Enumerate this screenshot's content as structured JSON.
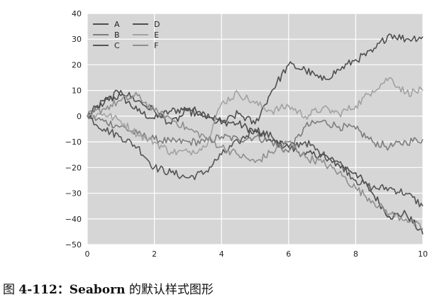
{
  "caption": {
    "prefix": "图 ",
    "number": "4-112：",
    "bold_word": "Seaborn",
    "suffix": " 的默认样式图形"
  },
  "style": {
    "plot_background": "#d6d6d6",
    "grid_color": "#ffffff",
    "series_colors": [
      "#4d4d4d",
      "#7d7d7d",
      "#555555",
      "#4f4f4f",
      "#a2a2a2",
      "#8e8e8e"
    ]
  },
  "chart_data": {
    "type": "line",
    "title": "",
    "xlabel": "",
    "ylabel": "",
    "xlim": [
      0,
      10
    ],
    "ylim": [
      -50,
      40
    ],
    "xticks": [
      0,
      2,
      4,
      6,
      8,
      10
    ],
    "yticks": [
      40,
      30,
      20,
      10,
      0,
      -10,
      -20,
      -30,
      -40,
      -50
    ],
    "xtick_labels": [
      "0",
      "2",
      "4",
      "6",
      "8",
      "10"
    ],
    "ytick_labels": [
      "40",
      "30",
      "20",
      "10",
      "0",
      "−10",
      "−20",
      "−30",
      "−40",
      "−50"
    ],
    "grid": true,
    "legend": {
      "placement": "top-left",
      "columns": 2
    },
    "x": [
      0,
      0.5,
      1,
      1.5,
      2,
      2.5,
      3,
      3.5,
      4,
      4.5,
      5,
      5.5,
      6,
      6.5,
      7,
      7.5,
      8,
      8.5,
      9,
      9.5,
      10
    ],
    "series": [
      {
        "name": "A",
        "values": [
          0,
          6,
          8,
          2,
          -1,
          2,
          3,
          1,
          -2,
          -3,
          -6,
          -10,
          -12,
          -15,
          -15,
          -19,
          -22,
          -30,
          -39,
          -38,
          -46
        ]
      },
      {
        "name": "B",
        "values": [
          0,
          -2,
          -4,
          -7,
          -9,
          -10,
          -10,
          -10,
          -8,
          -9,
          -8,
          -10,
          -14,
          -4,
          -2,
          -4,
          -5,
          -10,
          -12,
          -10,
          -9
        ]
      },
      {
        "name": "C",
        "values": [
          0,
          -5,
          -8,
          -12,
          -20,
          -22,
          -24,
          -22,
          -15,
          -10,
          -5,
          -8,
          -12,
          -10,
          -15,
          -18,
          -25,
          -28,
          -28,
          -30,
          -35
        ]
      },
      {
        "name": "D",
        "values": [
          0,
          5,
          10,
          6,
          2,
          -3,
          2,
          0,
          -3,
          1,
          -3,
          10,
          20,
          18,
          14,
          18,
          22,
          25,
          32,
          30,
          31
        ]
      },
      {
        "name": "E",
        "values": [
          0,
          1,
          -2,
          -7,
          -10,
          -14,
          -14,
          -12,
          5,
          9,
          5,
          2,
          4,
          0,
          3,
          1,
          4,
          10,
          15,
          9,
          10
        ]
      },
      {
        "name": "F",
        "values": [
          0,
          3,
          6,
          8,
          2,
          -1,
          -5,
          -8,
          -12,
          -15,
          -18,
          -14,
          -10,
          -16,
          -18,
          -22,
          -28,
          -33,
          -38,
          -40,
          -44
        ]
      }
    ]
  }
}
